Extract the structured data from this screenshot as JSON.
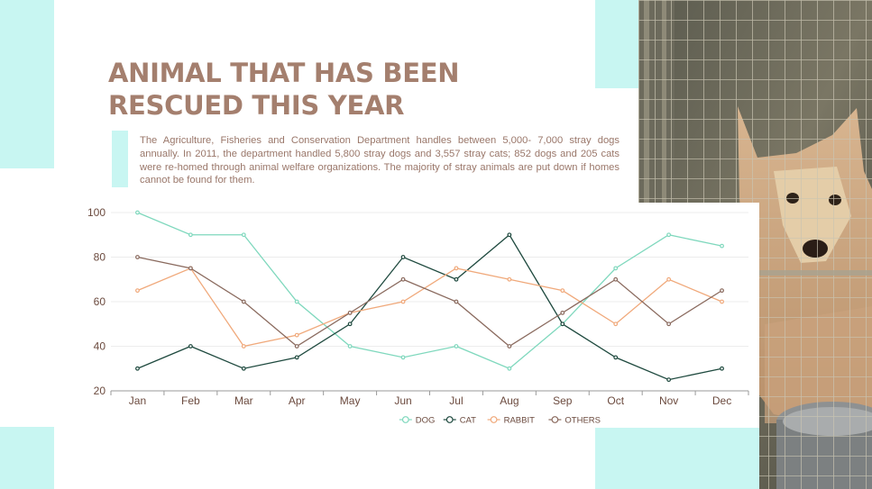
{
  "slide": {
    "title": "ANIMAL THAT HAS BEEN RESCUED THIS YEAR",
    "description": "The Agriculture, Fisheries and Conservation Department handles between 5,000- 7,000 stray dogs annually. In 2011, the department handled 5,800 stray dogs and 3,557 stray cats; 852 dogs and 205 cats were re-homed through animal welfare organizations. The majority of stray animals are put down if homes cannot be found for them.",
    "accent_color": "#c8f6f2",
    "title_color": "#a47f6e"
  },
  "photo": {
    "subject": "dog behind cage bars"
  },
  "chart_data": {
    "type": "line",
    "categories": [
      "Jan",
      "Feb",
      "Mar",
      "Apr",
      "May",
      "Jun",
      "Jul",
      "Aug",
      "Sep",
      "Oct",
      "Nov",
      "Dec"
    ],
    "ylim": [
      20,
      100
    ],
    "yticks": [
      20,
      40,
      60,
      80,
      100
    ],
    "grid": true,
    "legend_position": "bottom-center",
    "series": [
      {
        "name": "DOG",
        "color": "#7fd8bd",
        "values": [
          100,
          90,
          90,
          60,
          40,
          35,
          40,
          30,
          50,
          75,
          90,
          85
        ]
      },
      {
        "name": "CAT",
        "color": "#1f4a3f",
        "values": [
          30,
          40,
          30,
          35,
          50,
          80,
          70,
          90,
          50,
          35,
          25,
          30
        ]
      },
      {
        "name": "RABBIT",
        "color": "#f0a97b",
        "values": [
          65,
          75,
          40,
          45,
          55,
          60,
          75,
          70,
          65,
          50,
          70,
          60
        ]
      },
      {
        "name": "OTHERS",
        "color": "#8a6a5e",
        "values": [
          80,
          75,
          60,
          40,
          55,
          70,
          60,
          40,
          55,
          70,
          50,
          65
        ]
      }
    ]
  }
}
